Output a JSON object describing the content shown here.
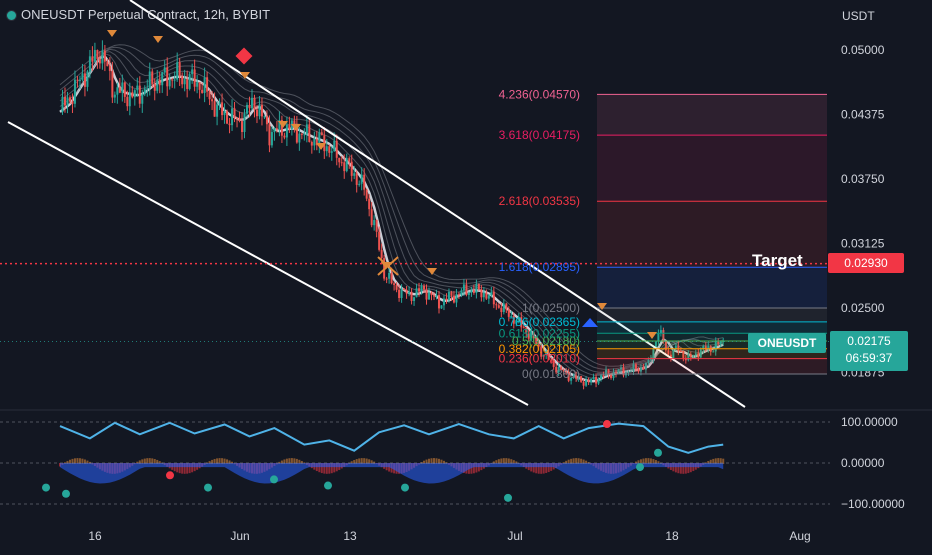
{
  "header": {
    "title": "ONEUSDT Perpetual Contract, 12h, BYBIT",
    "axis_unit": "USDT"
  },
  "colors": {
    "background": "#131722",
    "up": "#26a69a",
    "down": "#ef5350",
    "target": "#f23645",
    "channel": "#ffffff",
    "ribbon": "#9598a1"
  },
  "labels": {
    "target_text": "Target",
    "target_price": "0.02930",
    "symbol": "ONEUSDT",
    "last_price": "0.02175",
    "countdown": "06:59:37"
  },
  "chart_data": [
    {
      "type": "candlestick",
      "title": "ONEUSDT Perpetual Contract, 12h, BYBIT",
      "y_unit": "USDT",
      "y_ticks": [
        0.05,
        0.04375,
        0.0375,
        0.03125,
        0.025,
        0.01875
      ],
      "y_tick_labels": [
        "0.05000",
        "0.04375",
        "0.03750",
        "0.03125",
        "0.02500",
        "0.01875"
      ],
      "ylim": [
        0.0135,
        0.0535
      ],
      "x_tick_labels": [
        "16",
        "Jun",
        "13",
        "Jul",
        "18",
        "Aug"
      ],
      "close_path": [
        [
          0,
          0.044
        ],
        [
          8,
          0.047
        ],
        [
          16,
          0.05
        ],
        [
          22,
          0.046
        ],
        [
          30,
          0.0455
        ],
        [
          38,
          0.047
        ],
        [
          46,
          0.0475
        ],
        [
          56,
          0.0468
        ],
        [
          64,
          0.044
        ],
        [
          72,
          0.043
        ],
        [
          78,
          0.045
        ],
        [
          84,
          0.042
        ],
        [
          92,
          0.0425
        ],
        [
          100,
          0.0415
        ],
        [
          106,
          0.041
        ],
        [
          112,
          0.0395
        ],
        [
          118,
          0.038
        ],
        [
          122,
          0.0365
        ],
        [
          126,
          0.033
        ],
        [
          130,
          0.0285
        ],
        [
          134,
          0.027
        ],
        [
          140,
          0.0262
        ],
        [
          146,
          0.0268
        ],
        [
          152,
          0.0255
        ],
        [
          158,
          0.0262
        ],
        [
          164,
          0.0268
        ],
        [
          170,
          0.0265
        ],
        [
          176,
          0.0252
        ],
        [
          182,
          0.024
        ],
        [
          188,
          0.0225
        ],
        [
          194,
          0.0205
        ],
        [
          200,
          0.019
        ],
        [
          206,
          0.0182
        ],
        [
          212,
          0.0178
        ],
        [
          218,
          0.0185
        ],
        [
          224,
          0.0188
        ],
        [
          230,
          0.019
        ],
        [
          236,
          0.0195
        ],
        [
          240,
          0.0228
        ],
        [
          244,
          0.0205
        ],
        [
          248,
          0.021
        ],
        [
          252,
          0.02
        ],
        [
          256,
          0.0208
        ],
        [
          262,
          0.0212
        ],
        [
          266,
          0.0217
        ]
      ],
      "fibonacci": [
        {
          "label": "0(0.01860)",
          "value": 0.0186
        },
        {
          "label": "0.236(0.02010)",
          "value": 0.0201
        },
        {
          "label": "0.382(0.02105)",
          "value": 0.02105
        },
        {
          "label": "0.5(0.02180)",
          "value": 0.0218
        },
        {
          "label": "0.618(0.02255)",
          "value": 0.02255
        },
        {
          "label": "0.786(0.02365)",
          "value": 0.02365
        },
        {
          "label": "1(0.02500)",
          "value": 0.025
        },
        {
          "label": "1.618(0.02895)",
          "value": 0.02895
        },
        {
          "label": "2.618(0.03535)",
          "value": 0.03535
        },
        {
          "label": "3.618(0.04175)",
          "value": 0.04175
        },
        {
          "label": "4.236(0.04570)",
          "value": 0.0457
        }
      ],
      "target": {
        "label": "Target",
        "value": 0.0293
      },
      "last_price": 0.02175
    },
    {
      "type": "line",
      "y_ticks": [
        100,
        0,
        -100
      ],
      "y_tick_labels": [
        "100.00000",
        "0.00000",
        "−100.00000"
      ],
      "ylim": [
        -110,
        110
      ],
      "series": [
        {
          "values": [
            [
              0,
              90
            ],
            [
              12,
              60
            ],
            [
              22,
              98
            ],
            [
              32,
              70
            ],
            [
              44,
              98
            ],
            [
              54,
              72
            ],
            [
              66,
              94
            ],
            [
              76,
              65
            ],
            [
              86,
              85
            ],
            [
              98,
              45
            ],
            [
              108,
              55
            ],
            [
              118,
              30
            ],
            [
              128,
              75
            ],
            [
              138,
              92
            ],
            [
              148,
              70
            ],
            [
              160,
              95
            ],
            [
              172,
              70
            ],
            [
              182,
              60
            ],
            [
              192,
              90
            ],
            [
              202,
              60
            ],
            [
              212,
              85
            ],
            [
              224,
              96
            ],
            [
              234,
              90
            ],
            [
              244,
              40
            ],
            [
              252,
              25
            ],
            [
              260,
              40
            ],
            [
              266,
              45
            ]
          ]
        }
      ]
    }
  ]
}
